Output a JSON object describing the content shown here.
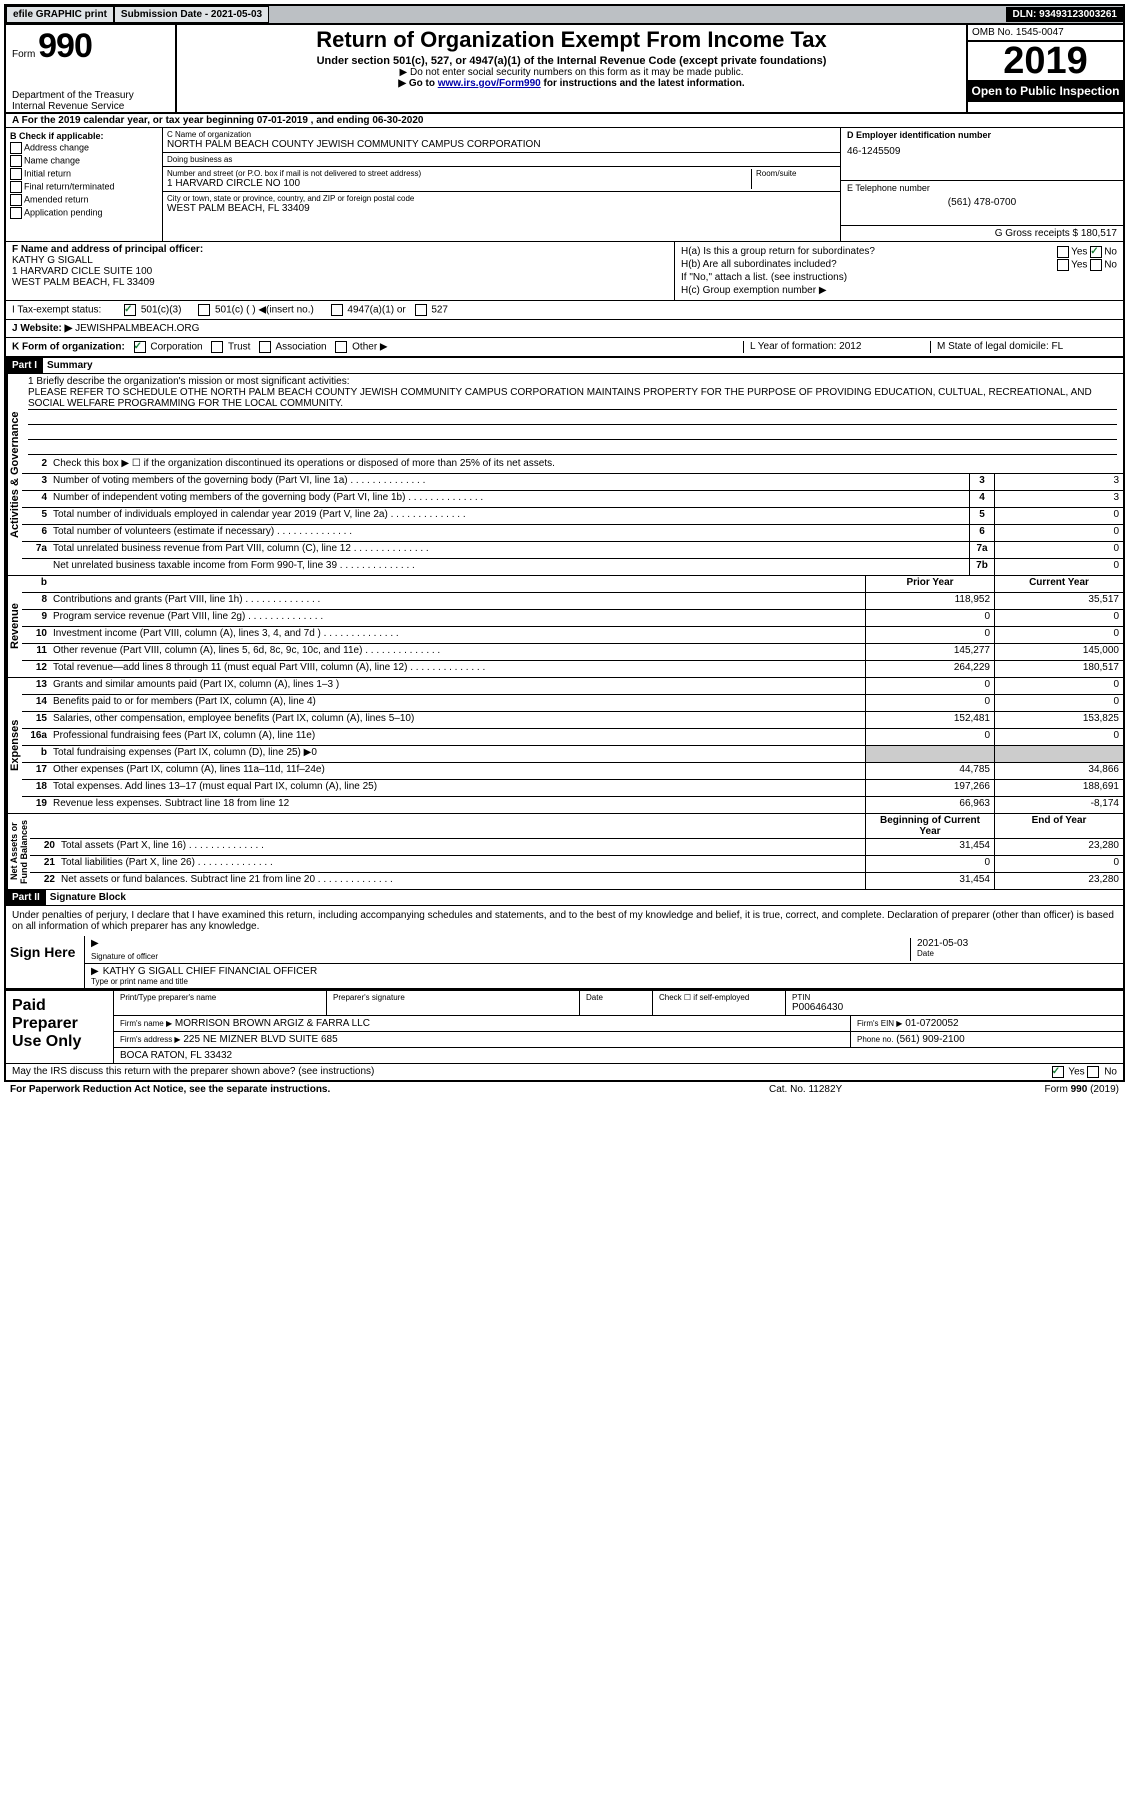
{
  "header": {
    "efile": "efile GRAPHIC print",
    "submission_label": "Submission Date - 2021-05-03",
    "dln": "DLN: 93493123003261"
  },
  "title_block": {
    "form_small": "Form",
    "form_big": "990",
    "dept1": "Department of the Treasury",
    "dept2": "Internal Revenue Service",
    "title": "Return of Organization Exempt From Income Tax",
    "sub": "Under section 501(c), 527, or 4947(a)(1) of the Internal Revenue Code (except private foundations)",
    "line2": "▶ Do not enter social security numbers on this form as it may be made public.",
    "line3a": "▶ Go to ",
    "line3_link": "www.irs.gov/Form990",
    "line3b": " for instructions and the latest information.",
    "omb": "OMB No. 1545-0047",
    "year": "2019",
    "open_pub": "Open to Public Inspection"
  },
  "period": "A For the 2019 calendar year, or tax year beginning 07-01-2019   , and ending 06-30-2020",
  "checks": {
    "header": "B Check if applicable:",
    "items": [
      "Address change",
      "Name change",
      "Initial return",
      "Final return/terminated",
      "Amended return",
      "Application pending"
    ]
  },
  "name": {
    "c_label": "C Name of organization",
    "org": "NORTH PALM BEACH COUNTY JEWISH COMMUNITY CAMPUS CORPORATION",
    "dba": "Doing business as",
    "dba_val": "",
    "addr_label": "Number and street (or P.O. box if mail is not delivered to street address)",
    "room": "Room/suite",
    "addr": "1 HARVARD CIRCLE NO 100",
    "city_label": "City or town, state or province, country, and ZIP or foreign postal code",
    "city": "WEST PALM BEACH, FL  33409"
  },
  "ein": {
    "d_label": "D Employer identification number",
    "ein": "46-1245509",
    "e_label": "E Telephone number",
    "phone": "(561) 478-0700",
    "g_label": "G Gross receipts $ 180,517"
  },
  "f": {
    "label": "F  Name and address of principal officer:",
    "name": "KATHY G SIGALL",
    "addr1": "1 HARVARD CICLE SUITE 100",
    "addr2": "WEST PALM BEACH, FL  33409"
  },
  "h": {
    "a": "H(a)  Is this a group return for subordinates?",
    "b": "H(b)  Are all subordinates included?",
    "ifno": "If \"No,\" attach a list. (see instructions)",
    "c": "H(c)  Group exemption number ▶",
    "yes": "Yes",
    "no": "No"
  },
  "tax_status": {
    "label": "I   Tax-exempt status:",
    "opts": [
      "501(c)(3)",
      "501(c) (  ) ◀(insert no.)",
      "4947(a)(1) or",
      "527"
    ]
  },
  "website": {
    "label": "J   Website: ▶",
    "val": "JEWISHPALMBEACH.ORG"
  },
  "korg": {
    "label": "K Form of organization:",
    "opts": [
      "Corporation",
      "Trust",
      "Association",
      "Other ▶"
    ],
    "l": "L Year of formation: 2012",
    "m": "M State of legal domicile: FL"
  },
  "part1": {
    "hdr": "Part I",
    "title": "Summary",
    "briefly": "1  Briefly describe the organization's mission or most significant activities:",
    "mission": "PLEASE REFER TO SCHEDULE OTHE NORTH PALM BEACH COUNTY JEWISH COMMUNITY CAMPUS CORPORATION MAINTAINS PROPERTY FOR THE PURPOSE OF PROVIDING EDUCATION, CULTUAL, RECREATIONAL, AND SOCIAL WELFARE PROGRAMMING FOR THE LOCAL COMMUNITY.",
    "line2": "Check this box ▶ ☐  if the organization discontinued its operations or disposed of more than 25% of its net assets.",
    "gov_lines": [
      {
        "n": "3",
        "t": "Number of voting members of the governing body (Part VI, line 1a)",
        "b": "3",
        "v": "3"
      },
      {
        "n": "4",
        "t": "Number of independent voting members of the governing body (Part VI, line 1b)",
        "b": "4",
        "v": "3"
      },
      {
        "n": "5",
        "t": "Total number of individuals employed in calendar year 2019 (Part V, line 2a)",
        "b": "5",
        "v": "0"
      },
      {
        "n": "6",
        "t": "Total number of volunteers (estimate if necessary)",
        "b": "6",
        "v": "0"
      },
      {
        "n": "7a",
        "t": "Total unrelated business revenue from Part VIII, column (C), line 12",
        "b": "7a",
        "v": "0"
      },
      {
        "n": "",
        "t": "Net unrelated business taxable income from Form 990-T, line 39",
        "b": "7b",
        "v": "0"
      }
    ],
    "col_hdr": {
      "n": "b",
      "t": "",
      "py": "Prior Year",
      "cy": "Current Year"
    },
    "rev_lines": [
      {
        "n": "8",
        "t": "Contributions and grants (Part VIII, line 1h)",
        "py": "118,952",
        "cy": "35,517"
      },
      {
        "n": "9",
        "t": "Program service revenue (Part VIII, line 2g)",
        "py": "0",
        "cy": "0"
      },
      {
        "n": "10",
        "t": "Investment income (Part VIII, column (A), lines 3, 4, and 7d )",
        "py": "0",
        "cy": "0"
      },
      {
        "n": "11",
        "t": "Other revenue (Part VIII, column (A), lines 5, 6d, 8c, 9c, 10c, and 11e)",
        "py": "145,277",
        "cy": "145,000"
      },
      {
        "n": "12",
        "t": "Total revenue—add lines 8 through 11 (must equal Part VIII, column (A), line 12)",
        "py": "264,229",
        "cy": "180,517"
      }
    ],
    "exp_lines": [
      {
        "n": "13",
        "t": "Grants and similar amounts paid (Part IX, column (A), lines 1–3 )",
        "py": "0",
        "cy": "0"
      },
      {
        "n": "14",
        "t": "Benefits paid to or for members (Part IX, column (A), line 4)",
        "py": "0",
        "cy": "0"
      },
      {
        "n": "15",
        "t": "Salaries, other compensation, employee benefits (Part IX, column (A), lines 5–10)",
        "py": "152,481",
        "cy": "153,825"
      },
      {
        "n": "16a",
        "t": "Professional fundraising fees (Part IX, column (A), line 11e)",
        "py": "0",
        "cy": "0"
      },
      {
        "n": "b",
        "t": "Total fundraising expenses (Part IX, column (D), line 25) ▶0",
        "py": "",
        "cy": "",
        "shade": true
      },
      {
        "n": "17",
        "t": "Other expenses (Part IX, column (A), lines 11a–11d, 11f–24e)",
        "py": "44,785",
        "cy": "34,866"
      },
      {
        "n": "18",
        "t": "Total expenses. Add lines 13–17 (must equal Part IX, column (A), line 25)",
        "py": "197,266",
        "cy": "188,691"
      },
      {
        "n": "19",
        "t": "Revenue less expenses. Subtract line 18 from line 12",
        "py": "66,963",
        "cy": "-8,174"
      }
    ],
    "net_hdr": {
      "py": "Beginning of Current Year",
      "cy": "End of Year"
    },
    "net_lines": [
      {
        "n": "20",
        "t": "Total assets (Part X, line 16)",
        "py": "31,454",
        "cy": "23,280"
      },
      {
        "n": "21",
        "t": "Total liabilities (Part X, line 26)",
        "py": "0",
        "cy": "0"
      },
      {
        "n": "22",
        "t": "Net assets or fund balances. Subtract line 21 from line 20",
        "py": "31,454",
        "cy": "23,280"
      }
    ]
  },
  "part2": {
    "hdr": "Part II",
    "title": "Signature Block",
    "penalties": "Under penalties of perjury, I declare that I have examined this return, including accompanying schedules and statements, and to the best of my knowledge and belief, it is true, correct, and complete. Declaration of preparer (other than officer) is based on all information of which preparer has any knowledge."
  },
  "sign": {
    "here": "Sign Here",
    "sig_officer": "Signature of officer",
    "date_label": "Date",
    "date": "2021-05-03",
    "name": "KATHY G SIGALL  CHIEF FINANCIAL OFFICER",
    "type": "Type or print name and title"
  },
  "paid": {
    "title": "Paid Preparer Use Only",
    "print_label": "Print/Type preparer's name",
    "sig_label": "Preparer's signature",
    "date": "Date",
    "check": "Check ☐ if self-employed",
    "ptin_label": "PTIN",
    "ptin": "P00646430",
    "firm_label": "Firm's name   ▶",
    "firm": "MORRISON BROWN ARGIZ & FARRA LLC",
    "ein_label": "Firm's EIN ▶",
    "ein": "01-0720052",
    "addr_label": "Firm's address ▶",
    "addr": "225 NE MIZNER BLVD SUITE 685",
    "city": "BOCA RATON, FL  33432",
    "phone_label": "Phone no.",
    "phone": "(561) 909-2100"
  },
  "discuss": "May the IRS discuss this return with the preparer shown above? (see instructions)",
  "footer": {
    "left": "For Paperwork Reduction Act Notice, see the separate instructions.",
    "mid": "Cat. No. 11282Y",
    "right": "Form 990 (2019)"
  }
}
